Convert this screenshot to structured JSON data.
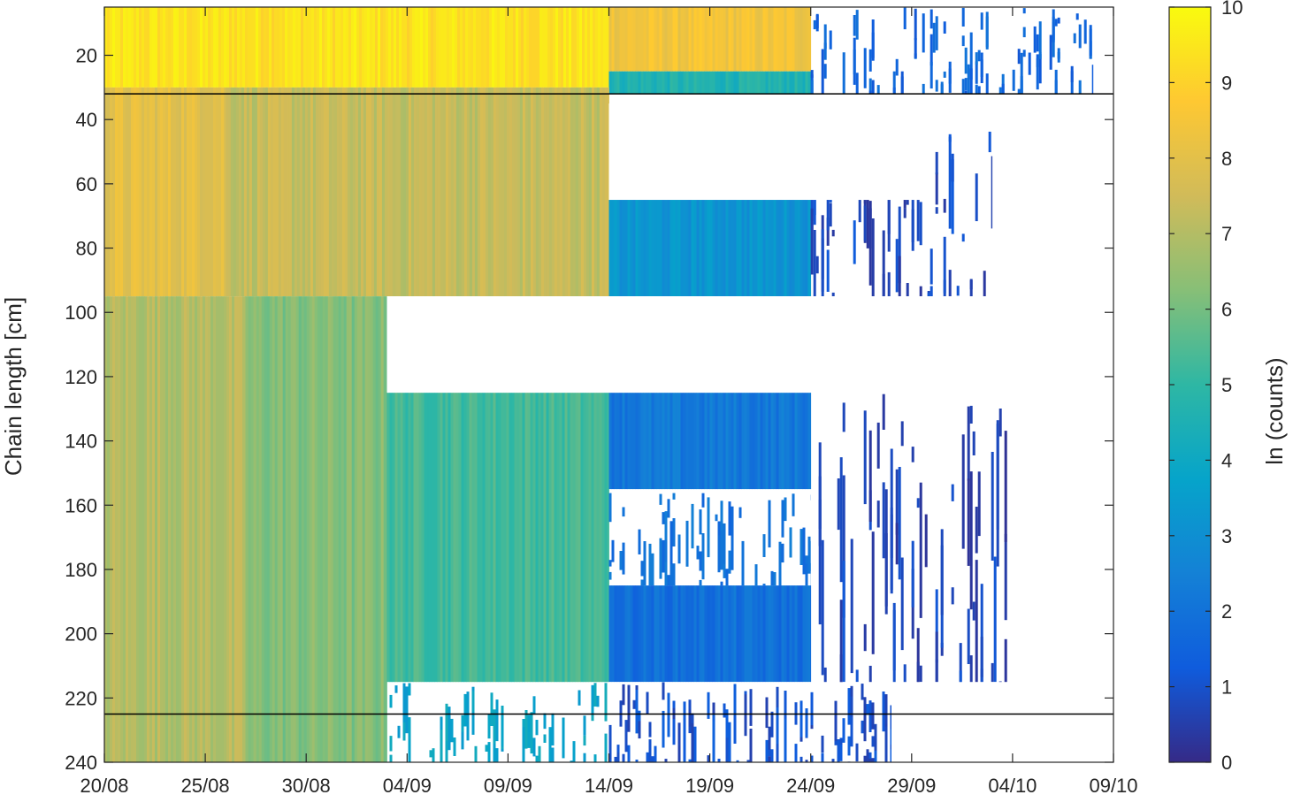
{
  "chart_data": {
    "type": "heatmap",
    "title": "",
    "xlabel": "",
    "ylabel": "Chain length [cm]",
    "colorbar_label": "ln (counts)",
    "colormap": "parula",
    "colormap_stops": [
      "#352A87",
      "#0F5CDD",
      "#1481D6",
      "#06A4CA",
      "#2EB7A4",
      "#87BF77",
      "#D1BB59",
      "#FEC832",
      "#F9FB0E"
    ],
    "color_range": [
      0,
      10
    ],
    "colorbar_ticks": [
      "0",
      "1",
      "2",
      "3",
      "4",
      "5",
      "6",
      "7",
      "8",
      "9",
      "10"
    ],
    "x_axis": {
      "type": "date",
      "range": [
        "2023-08-20",
        "2023-10-09"
      ],
      "tick_dates": [
        "2023-08-20",
        "2023-08-25",
        "2023-08-30",
        "2023-09-04",
        "2023-09-09",
        "2023-09-14",
        "2023-09-19",
        "2023-09-24",
        "2023-09-29",
        "2023-10-04",
        "2023-10-09"
      ],
      "tick_labels": [
        "20/08",
        "25/08",
        "30/08",
        "04/09",
        "09/09",
        "14/09",
        "19/09",
        "24/09",
        "29/09",
        "04/10",
        "09/10"
      ]
    },
    "y_axis": {
      "range": [
        5,
        240
      ],
      "reversed": true,
      "ticks": [
        20,
        40,
        60,
        80,
        100,
        120,
        140,
        160,
        180,
        200,
        220,
        240
      ],
      "tick_labels": [
        "20",
        "40",
        "60",
        "80",
        "100",
        "120",
        "140",
        "160",
        "180",
        "200",
        "220",
        "240"
      ]
    },
    "reference_lines_y": [
      32,
      225
    ],
    "regions": [
      {
        "x": [
          "2023-08-20",
          "2023-09-14"
        ],
        "y": [
          5,
          30
        ],
        "ln_counts": 9.4
      },
      {
        "x": [
          "2023-09-14",
          "2023-09-24"
        ],
        "y": [
          5,
          25
        ],
        "ln_counts": 8.4
      },
      {
        "x": [
          "2023-09-14",
          "2023-09-24"
        ],
        "y": [
          25,
          32
        ],
        "ln_counts": 4.6
      },
      {
        "x": [
          "2023-09-24",
          "2023-10-08"
        ],
        "y": [
          5,
          32
        ],
        "ln_counts": 1.6,
        "sparse": true
      },
      {
        "x": [
          "2023-08-20",
          "2023-08-26"
        ],
        "y": [
          30,
          95
        ],
        "ln_counts": 8.0
      },
      {
        "x": [
          "2023-08-26",
          "2023-09-14"
        ],
        "y": [
          30,
          95
        ],
        "ln_counts": 7.3
      },
      {
        "x": [
          "2023-08-20",
          "2023-08-27"
        ],
        "y": [
          95,
          240
        ],
        "ln_counts": 7.0
      },
      {
        "x": [
          "2023-08-27",
          "2023-09-03"
        ],
        "y": [
          95,
          240
        ],
        "ln_counts": 6.2
      },
      {
        "x": [
          "2023-09-03",
          "2023-09-14"
        ],
        "y": [
          125,
          215
        ],
        "ln_counts": 5.3
      },
      {
        "x": [
          "2023-09-03",
          "2023-09-14"
        ],
        "y": [
          215,
          240
        ],
        "ln_counts": 3.8,
        "sparse": true
      },
      {
        "x": [
          "2023-09-14",
          "2023-09-24"
        ],
        "y": [
          65,
          95
        ],
        "ln_counts": 3.2
      },
      {
        "x": [
          "2023-09-14",
          "2023-09-24"
        ],
        "y": [
          125,
          155
        ],
        "ln_counts": 2.2
      },
      {
        "x": [
          "2023-09-14",
          "2023-09-24"
        ],
        "y": [
          155,
          185
        ],
        "ln_counts": 2.0,
        "sparse": true
      },
      {
        "x": [
          "2023-09-14",
          "2023-09-24"
        ],
        "y": [
          185,
          215
        ],
        "ln_counts": 1.9
      },
      {
        "x": [
          "2023-09-14",
          "2023-09-28"
        ],
        "y": [
          215,
          240
        ],
        "ln_counts": 1.0,
        "sparse": true
      },
      {
        "x": [
          "2023-09-24",
          "2023-10-03"
        ],
        "y": [
          38,
          95
        ],
        "ln_counts": 0.8,
        "sparse": true
      },
      {
        "x": [
          "2023-09-24",
          "2023-10-04"
        ],
        "y": [
          125,
          215
        ],
        "ln_counts": 0.7,
        "sparse": true
      }
    ],
    "missing_regions": [
      {
        "x": [
          "2023-09-14",
          "2023-09-30"
        ],
        "y": [
          35,
          65
        ]
      },
      {
        "x": [
          "2023-09-03",
          "2023-10-09"
        ],
        "y": [
          95,
          125
        ]
      }
    ]
  }
}
